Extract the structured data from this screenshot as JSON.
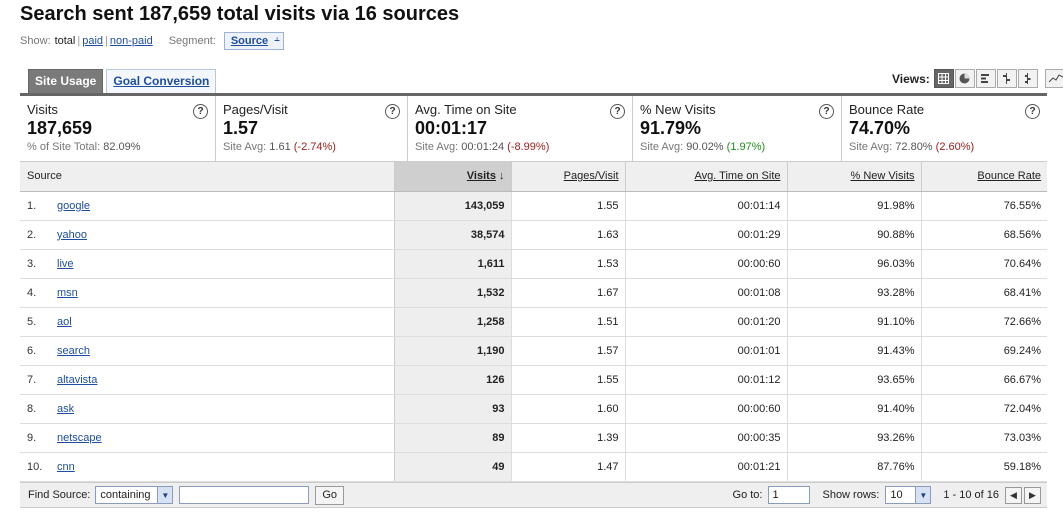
{
  "title": "Search sent 187,659 total visits via 16 sources",
  "show": {
    "label": "Show:",
    "current": "total",
    "links": [
      "paid",
      "non-paid"
    ],
    "segment_label": "Segment:",
    "segment_value": "Source"
  },
  "tabs": [
    {
      "label": "Site Usage",
      "active": true
    },
    {
      "label": "Goal Conversion",
      "active": false
    }
  ],
  "views": {
    "label": "Views:",
    "icons": [
      "table-view-icon",
      "pie-view-icon",
      "performance-view-icon",
      "comparison-view-icon",
      "pivot-view-icon",
      "sparkline-view-icon"
    ]
  },
  "metrics": [
    {
      "name": "Visits",
      "value": "187,659",
      "sub_prefix": "% of Site Total:",
      "sub_avg": "82.09%",
      "sub_change": "",
      "change_type": ""
    },
    {
      "name": "Pages/Visit",
      "value": "1.57",
      "sub_prefix": "Site Avg:",
      "sub_avg": "1.61",
      "sub_change": "(-2.74%)",
      "change_type": "neg"
    },
    {
      "name": "Avg. Time on Site",
      "value": "00:01:17",
      "sub_prefix": "Site Avg:",
      "sub_avg": "00:01:24",
      "sub_change": "(-8.99%)",
      "change_type": "neg"
    },
    {
      "name": "% New Visits",
      "value": "91.79%",
      "sub_prefix": "Site Avg:",
      "sub_avg": "90.02%",
      "sub_change": "(1.97%)",
      "change_type": "pos"
    },
    {
      "name": "Bounce Rate",
      "value": "74.70%",
      "sub_prefix": "Site Avg:",
      "sub_avg": "72.80%",
      "sub_change": "(2.60%)",
      "change_type": "neg"
    }
  ],
  "help_glyph": "?",
  "table": {
    "columns": [
      "Source",
      "Visits",
      "Pages/Visit",
      "Avg. Time on Site",
      "% New Visits",
      "Bounce Rate"
    ],
    "sort_arrow": "↓",
    "rows": [
      {
        "idx": "1.",
        "source": "google",
        "visits": "143,059",
        "ppv": "1.55",
        "time": "00:01:14",
        "new": "91.98%",
        "bounce": "76.55%"
      },
      {
        "idx": "2.",
        "source": "yahoo",
        "visits": "38,574",
        "ppv": "1.63",
        "time": "00:01:29",
        "new": "90.88%",
        "bounce": "68.56%"
      },
      {
        "idx": "3.",
        "source": "live",
        "visits": "1,611",
        "ppv": "1.53",
        "time": "00:00:60",
        "new": "96.03%",
        "bounce": "70.64%"
      },
      {
        "idx": "4.",
        "source": "msn",
        "visits": "1,532",
        "ppv": "1.67",
        "time": "00:01:08",
        "new": "93.28%",
        "bounce": "68.41%"
      },
      {
        "idx": "5.",
        "source": "aol",
        "visits": "1,258",
        "ppv": "1.51",
        "time": "00:01:20",
        "new": "91.10%",
        "bounce": "72.66%"
      },
      {
        "idx": "6.",
        "source": "search",
        "visits": "1,190",
        "ppv": "1.57",
        "time": "00:01:01",
        "new": "91.43%",
        "bounce": "69.24%"
      },
      {
        "idx": "7.",
        "source": "altavista",
        "visits": "126",
        "ppv": "1.55",
        "time": "00:01:12",
        "new": "93.65%",
        "bounce": "66.67%"
      },
      {
        "idx": "8.",
        "source": "ask",
        "visits": "93",
        "ppv": "1.60",
        "time": "00:00:60",
        "new": "91.40%",
        "bounce": "72.04%"
      },
      {
        "idx": "9.",
        "source": "netscape",
        "visits": "89",
        "ppv": "1.39",
        "time": "00:00:35",
        "new": "93.26%",
        "bounce": "73.03%"
      },
      {
        "idx": "10.",
        "source": "cnn",
        "visits": "49",
        "ppv": "1.47",
        "time": "00:01:21",
        "new": "87.76%",
        "bounce": "59.18%"
      }
    ]
  },
  "footer": {
    "find_label": "Find Source:",
    "match_value": "containing",
    "search_value": "",
    "go_label": "Go",
    "goto_label": "Go to:",
    "goto_value": "1",
    "rows_label": "Show rows:",
    "rows_value": "10",
    "range_text": "1 - 10 of 16"
  }
}
